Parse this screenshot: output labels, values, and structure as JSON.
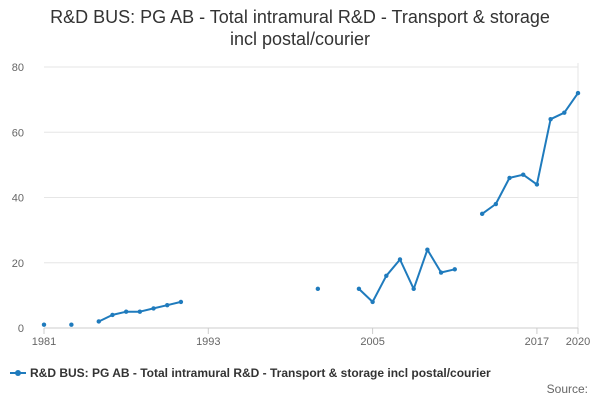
{
  "chart_data": {
    "type": "line",
    "title": "R&D BUS: PG AB - Total intramural R&D - Transport & storage incl postal/courier",
    "xlabel": "",
    "ylabel": "",
    "xlim": [
      1981,
      2020
    ],
    "ylim": [
      0,
      80
    ],
    "x_ticks": [
      1981,
      1993,
      2005,
      2017,
      2020
    ],
    "y_ticks": [
      0,
      20,
      40,
      60,
      80
    ],
    "grid": true,
    "legend": "bottom-left",
    "series": [
      {
        "name": "R&D BUS: PG AB - Total intramural R&D - Transport & storage incl postal/courier",
        "color": "#1f7bbd",
        "points": [
          [
            1981,
            1
          ],
          [
            1983,
            1
          ],
          [
            1985,
            2
          ],
          [
            1986,
            4
          ],
          [
            1987,
            5
          ],
          [
            1988,
            5
          ],
          [
            1989,
            6
          ],
          [
            1990,
            7
          ],
          [
            1991,
            8
          ],
          [
            2001,
            12
          ],
          [
            2004,
            12
          ],
          [
            2005,
            8
          ],
          [
            2006,
            16
          ],
          [
            2007,
            21
          ],
          [
            2008,
            12
          ],
          [
            2009,
            24
          ],
          [
            2010,
            17
          ],
          [
            2011,
            18
          ],
          [
            2013,
            35
          ],
          [
            2014,
            38
          ],
          [
            2015,
            46
          ],
          [
            2016,
            47
          ],
          [
            2017,
            44
          ],
          [
            2018,
            64
          ],
          [
            2019,
            66
          ],
          [
            2020,
            72
          ]
        ]
      }
    ],
    "source_label": "Source:"
  }
}
